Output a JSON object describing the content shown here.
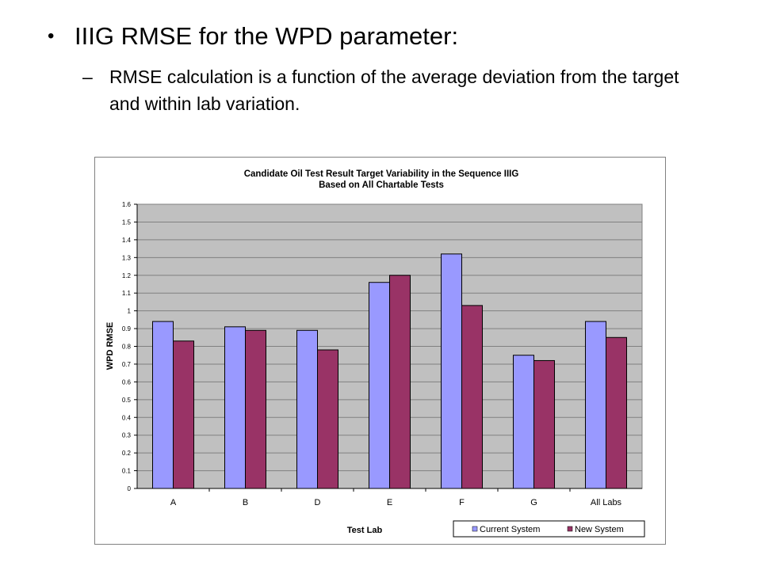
{
  "slide": {
    "bullet": "IIIG RMSE for the WPD parameter:",
    "sub_dash": "–",
    "sub_bullet": "RMSE calculation is a function of the average deviation from the target and within lab variation."
  },
  "chart_data": {
    "type": "bar",
    "title": "Candidate Oil Test Result Target Variability in the Sequence IIIG",
    "subtitle": "Based on All Chartable Tests",
    "xlabel": "Test Lab",
    "ylabel": "WPD RMSE",
    "categories": [
      "A",
      "B",
      "D",
      "E",
      "F",
      "G",
      "All Labs"
    ],
    "series": [
      {
        "name": "Current System",
        "color": "#9999ff",
        "values": [
          0.94,
          0.91,
          0.89,
          1.16,
          1.32,
          0.75,
          0.94
        ]
      },
      {
        "name": "New System",
        "color": "#993366",
        "values": [
          0.83,
          0.89,
          0.78,
          1.2,
          1.03,
          0.72,
          0.85
        ]
      }
    ],
    "ylim": [
      0,
      1.6
    ],
    "yticks": [
      "0",
      "0.1",
      "0.2",
      "0.3",
      "0.4",
      "0.5",
      "0.6",
      "0.7",
      "0.8",
      "0.9",
      "1",
      "1.1",
      "1.2",
      "1.3",
      "1.4",
      "1.5",
      "1.6"
    ],
    "grid": true,
    "legend_position": "bottom-right",
    "plot_background": "#c0c0c0"
  }
}
